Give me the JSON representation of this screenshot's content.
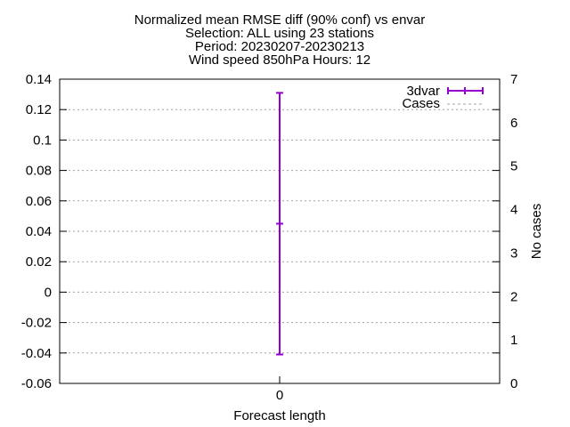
{
  "chart_data": {
    "type": "errorbar",
    "title_lines": [
      "Normalized mean RMSE diff (90% conf) vs envar",
      "Selection: ALL using    23 stations",
      "Period: 20230207-20230213",
      "Wind speed 850hPa   Hours: 12"
    ],
    "xlabel": "Forecast length",
    "ylabel": "",
    "y2label": "No cases",
    "x_ticks": [
      "0"
    ],
    "y_ticks": [
      "0.14",
      "0.12",
      "0.1",
      "0.08",
      "0.06",
      "0.04",
      "0.02",
      "0",
      "-0.02",
      "-0.04",
      "-0.06"
    ],
    "y2_ticks": [
      "7",
      "6",
      "5",
      "4",
      "3",
      "2",
      "1",
      "0"
    ],
    "ylim": [
      -0.06,
      0.14
    ],
    "y2lim": [
      0,
      7
    ],
    "xlim": [
      -1,
      1
    ],
    "grid": true,
    "legend_position": "top-right",
    "series": [
      {
        "name": "3dvar",
        "color": "#9400d3",
        "x": [
          0
        ],
        "y": [
          0.045
        ],
        "ylow": [
          -0.041
        ],
        "yhigh": [
          0.131
        ]
      },
      {
        "name": "Cases",
        "color": "#a0a0a0",
        "x": [],
        "y": []
      }
    ]
  }
}
